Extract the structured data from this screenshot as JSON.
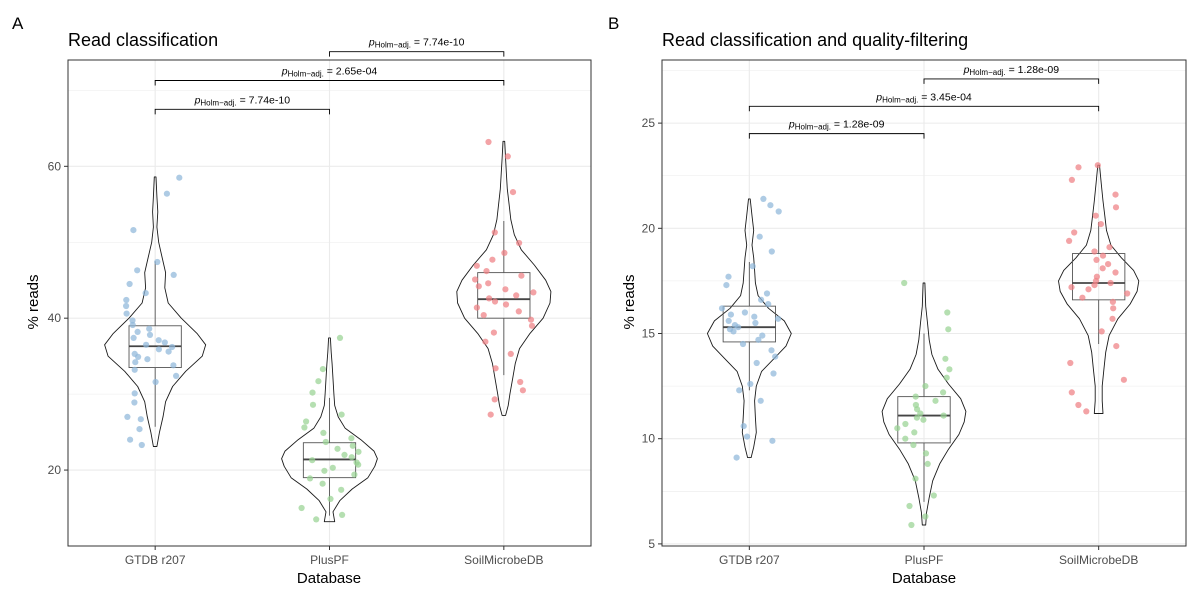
{
  "chart_data": [
    {
      "panel_label": "A",
      "type": "violin",
      "title": "Read classification",
      "xlabel": "Database",
      "ylabel": "% reads",
      "categories": [
        "GTDB r207",
        "PlusPF",
        "SoilMicrobeDB"
      ],
      "ylim": [
        10,
        74
      ],
      "yticks": [
        20,
        40,
        60
      ],
      "grid": true,
      "colors": [
        "#8fb7d9",
        "#98d293",
        "#ef7f84"
      ],
      "box": [
        {
          "q1": 33.5,
          "median": 36.3,
          "q3": 39.0,
          "whisker_low": 25.7,
          "whisker_high": 47.5
        },
        {
          "q1": 19.0,
          "median": 21.4,
          "q3": 23.6,
          "whisker_low": 14.0,
          "whisker_high": 29.5
        },
        {
          "q1": 40.0,
          "median": 42.5,
          "q3": 46.0,
          "whisker_low": 32.5,
          "whisker_high": 52.8
        }
      ],
      "violin": [
        {
          "y": [
            23.1,
            25,
            27,
            29,
            31,
            33,
            35,
            36.5,
            38,
            40,
            42,
            44,
            46,
            48,
            50,
            52,
            54,
            56,
            58.6
          ],
          "width": [
            0.02,
            0.05,
            0.09,
            0.12,
            0.2,
            0.35,
            0.54,
            0.58,
            0.48,
            0.3,
            0.15,
            0.11,
            0.12,
            0.08,
            0.04,
            0.02,
            0.03,
            0.02,
            0.01
          ]
        },
        {
          "y": [
            13.2,
            14.5,
            16,
            17.5,
            19,
            20.5,
            21.5,
            22.5,
            24,
            25.5,
            27,
            28.5,
            30,
            32,
            34,
            35.5,
            37.4
          ],
          "width": [
            0.06,
            0.04,
            0.12,
            0.26,
            0.44,
            0.52,
            0.55,
            0.51,
            0.36,
            0.18,
            0.1,
            0.06,
            0.05,
            0.04,
            0.03,
            0.02,
            0.01
          ]
        },
        {
          "y": [
            27.2,
            28.5,
            30,
            32,
            34,
            36,
            38,
            40,
            42,
            43.5,
            45,
            47,
            49,
            51,
            53,
            55,
            57,
            59,
            61,
            63.3
          ],
          "width": [
            0.02,
            0.05,
            0.07,
            0.1,
            0.13,
            0.18,
            0.3,
            0.45,
            0.53,
            0.54,
            0.48,
            0.35,
            0.2,
            0.12,
            0.08,
            0.06,
            0.04,
            0.03,
            0.02,
            0.01
          ]
        }
      ],
      "points": [
        [
          23.3,
          24.0,
          25.4,
          26.7,
          27.0,
          28.9,
          30.1,
          31.6,
          32.4,
          33.2,
          33.8,
          34.2,
          34.6,
          34.9,
          35.3,
          35.6,
          35.9,
          36.2,
          36.5,
          36.8,
          37.1,
          37.4,
          37.8,
          38.2,
          38.6,
          39.1,
          39.7,
          40.6,
          41.6,
          42.4,
          43.3,
          44.5,
          45.7,
          46.3,
          47.4,
          51.6,
          56.4,
          58.5
        ],
        [
          13.5,
          14.1,
          15.0,
          16.2,
          17.4,
          18.2,
          18.9,
          19.4,
          19.9,
          20.3,
          20.7,
          21.0,
          21.3,
          21.7,
          22.0,
          22.4,
          22.8,
          23.2,
          23.7,
          24.2,
          24.9,
          25.6,
          26.4,
          27.3,
          28.6,
          30.2,
          31.7,
          33.3,
          37.4
        ],
        [
          27.3,
          29.3,
          30.5,
          31.6,
          33.4,
          35.3,
          36.9,
          38.1,
          39.0,
          39.8,
          40.4,
          40.9,
          41.4,
          41.8,
          42.2,
          42.6,
          43.0,
          43.4,
          43.8,
          44.2,
          44.6,
          45.1,
          45.6,
          46.2,
          46.9,
          47.7,
          48.6,
          49.9,
          51.3,
          56.6,
          61.3,
          63.2
        ]
      ],
      "comparisons": [
        {
          "from": 0,
          "to": 1,
          "y": 67.5,
          "p_symbol": "p",
          "p_subscript": "Holm−adj.",
          "p_value": "= 7.74e-10"
        },
        {
          "from": 0,
          "to": 2,
          "y": 71.3,
          "p_symbol": "p",
          "p_subscript": "Holm−adj.",
          "p_value": "= 2.65e-04"
        },
        {
          "from": 1,
          "to": 2,
          "y": 75.1,
          "p_symbol": "p",
          "p_subscript": "Holm−adj.",
          "p_value": "= 7.74e-10"
        }
      ]
    },
    {
      "panel_label": "B",
      "type": "violin",
      "title": "Read classification and quality-filtering",
      "xlabel": "Database",
      "ylabel": "% reads",
      "categories": [
        "GTDB r207",
        "PlusPF",
        "SoilMicrobeDB"
      ],
      "ylim": [
        4.9,
        28
      ],
      "yticks": [
        5,
        10,
        15,
        20,
        25
      ],
      "grid": true,
      "colors": [
        "#8fb7d9",
        "#98d293",
        "#ef7f84"
      ],
      "box": [
        {
          "q1": 14.6,
          "median": 15.3,
          "q3": 16.3,
          "whisker_low": 12.3,
          "whisker_high": 18.4
        },
        {
          "q1": 9.8,
          "median": 11.1,
          "q3": 12.0,
          "whisker_low": 7.0,
          "whisker_high": 15.0
        },
        {
          "q1": 16.6,
          "median": 17.4,
          "q3": 18.8,
          "whisker_low": 14.5,
          "whisker_high": 20.3
        }
      ],
      "violin": [
        {
          "y": [
            9.1,
            9.6,
            10.3,
            11,
            11.8,
            12.5,
            13.2,
            13.8,
            14.4,
            15,
            15.6,
            16.2,
            16.8,
            17.4,
            18,
            18.6,
            19.2,
            19.9,
            20.6,
            21.4
          ],
          "width": [
            0.02,
            0.05,
            0.08,
            0.07,
            0.06,
            0.08,
            0.14,
            0.28,
            0.42,
            0.48,
            0.4,
            0.22,
            0.1,
            0.07,
            0.06,
            0.05,
            0.03,
            0.05,
            0.03,
            0.01
          ]
        },
        {
          "y": [
            5.9,
            6.5,
            7.2,
            8,
            8.8,
            9.5,
            10.2,
            10.8,
            11.3,
            11.9,
            12.6,
            13.3,
            14,
            14.7,
            15.5,
            16.3,
            17.4
          ],
          "width": [
            0.02,
            0.03,
            0.06,
            0.1,
            0.18,
            0.28,
            0.4,
            0.46,
            0.48,
            0.42,
            0.28,
            0.16,
            0.09,
            0.06,
            0.04,
            0.02,
            0.01
          ]
        },
        {
          "y": [
            11.2,
            11.8,
            12.5,
            13.3,
            14.1,
            14.9,
            15.7,
            16.4,
            17,
            17.5,
            18,
            18.6,
            19.2,
            19.9,
            20.6,
            21.3,
            22.1,
            23.0
          ],
          "width": [
            0.05,
            0.04,
            0.04,
            0.06,
            0.08,
            0.12,
            0.22,
            0.36,
            0.44,
            0.46,
            0.4,
            0.26,
            0.14,
            0.09,
            0.07,
            0.05,
            0.03,
            0.01
          ]
        }
      ],
      "points": [
        [
          9.1,
          9.9,
          10.1,
          10.6,
          11.8,
          12.3,
          12.6,
          13.1,
          13.6,
          13.9,
          14.2,
          14.5,
          14.7,
          14.9,
          15.1,
          15.2,
          15.3,
          15.4,
          15.5,
          15.6,
          15.7,
          15.8,
          15.9,
          16.0,
          16.2,
          16.4,
          16.6,
          16.9,
          17.3,
          17.7,
          18.2,
          18.9,
          19.6,
          20.8,
          21.1,
          21.4
        ],
        [
          5.9,
          6.3,
          6.8,
          7.3,
          8.1,
          8.8,
          9.3,
          9.7,
          10.0,
          10.3,
          10.5,
          10.7,
          10.9,
          11.0,
          11.1,
          11.2,
          11.4,
          11.6,
          11.8,
          12.0,
          12.2,
          12.5,
          12.9,
          13.3,
          13.8,
          15.2,
          16.0,
          17.4
        ],
        [
          11.3,
          11.6,
          12.2,
          12.8,
          13.6,
          14.4,
          15.1,
          15.7,
          16.2,
          16.5,
          16.7,
          16.9,
          17.1,
          17.2,
          17.3,
          17.4,
          17.5,
          17.7,
          17.9,
          18.1,
          18.3,
          18.5,
          18.7,
          18.9,
          19.1,
          19.4,
          19.8,
          20.2,
          20.6,
          21.0,
          21.6,
          22.3,
          22.9,
          23.0
        ]
      ],
      "comparisons": [
        {
          "from": 0,
          "to": 1,
          "y": 24.5,
          "p_symbol": "p",
          "p_subscript": "Holm−adj.",
          "p_value": "= 1.28e-09"
        },
        {
          "from": 0,
          "to": 2,
          "y": 25.8,
          "p_symbol": "p",
          "p_subscript": "Holm−adj.",
          "p_value": "= 3.45e-04"
        },
        {
          "from": 1,
          "to": 2,
          "y": 27.1,
          "p_symbol": "p",
          "p_subscript": "Holm−adj.",
          "p_value": "= 1.28e-09"
        }
      ]
    }
  ]
}
